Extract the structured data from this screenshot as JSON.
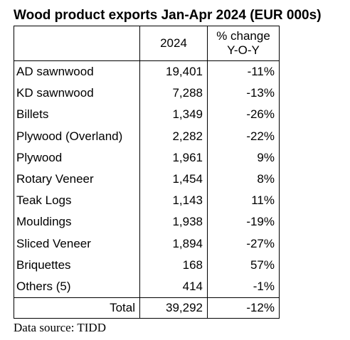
{
  "title": "Wood product exports Jan-Apr 2024 (EUR 000s)",
  "table": {
    "headers": {
      "product": "",
      "year": "2024",
      "change_line1": "% change",
      "change_line2": "Y-O-Y"
    },
    "rows": [
      {
        "product": "AD sawnwood",
        "value": "19,401",
        "change": "-11%"
      },
      {
        "product": "KD sawnwood",
        "value": "7,288",
        "change": "-13%"
      },
      {
        "product": "Billets",
        "value": "1,349",
        "change": "-26%"
      },
      {
        "product": "Plywood (Overland)",
        "value": "2,282",
        "change": "-22%"
      },
      {
        "product": "Plywood",
        "value": "1,961",
        "change": "9%"
      },
      {
        "product": "Rotary Veneer",
        "value": "1,454",
        "change": "8%"
      },
      {
        "product": "Teak Logs",
        "value": "1,143",
        "change": "11%"
      },
      {
        "product": "Mouldings",
        "value": "1,938",
        "change": "-19%"
      },
      {
        "product": "Sliced Veneer",
        "value": "1,894",
        "change": "-27%"
      },
      {
        "product": "Briquettes",
        "value": "168",
        "change": "57%"
      },
      {
        "product": "Others (5)",
        "value": "414",
        "change": "-1%"
      }
    ],
    "total": {
      "label": "Total",
      "value": "39,292",
      "change": "-12%"
    }
  },
  "source": "Data source: TIDD"
}
